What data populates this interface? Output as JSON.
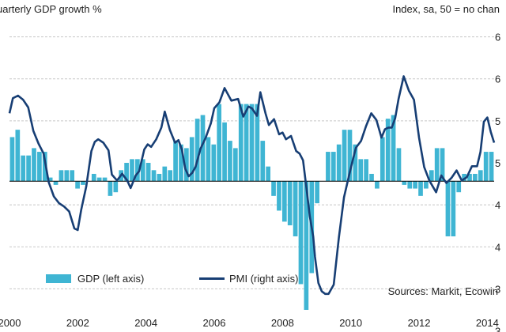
{
  "chart_data": {
    "type": "bar+line",
    "left_title": "uarterly GDP growth %",
    "right_title": "Index, sa, 50 = no chan",
    "source": "Sources: Markit, Ecowin",
    "x_ticks": [
      "2000",
      "2002",
      "2004",
      "2006",
      "2008",
      "2010",
      "2012",
      "2014"
    ],
    "x_range": [
      2000,
      2014.2
    ],
    "right_axis": {
      "ticks": [
        "6",
        "6",
        "5",
        "5",
        "4",
        "4",
        "3",
        "3"
      ],
      "range": [
        32.5,
        67.5
      ]
    },
    "left_axis": {
      "range": [
        -3.5,
        4.5
      ]
    },
    "grid": true,
    "legend": "bottom-left",
    "colors": {
      "bars": "#3fb5d3",
      "line": "#173e74",
      "grid": "#c8c8c8",
      "zero": "#000000"
    },
    "series": [
      {
        "name": "GDP (left axis)",
        "kind": "bar",
        "axis": "left",
        "values": [
          1.2,
          1.4,
          0.7,
          0.7,
          0.9,
          0.8,
          0.8,
          0.1,
          -0.1,
          0.3,
          0.3,
          0.3,
          -0.2,
          -0.1,
          0.0,
          0.2,
          0.1,
          0.1,
          -0.4,
          -0.3,
          0.3,
          0.5,
          0.6,
          0.6,
          0.6,
          0.5,
          0.3,
          0.2,
          0.4,
          0.3,
          1.1,
          1.0,
          0.9,
          1.2,
          1.7,
          1.8,
          1.2,
          1.0,
          2.1,
          1.6,
          1.1,
          0.9,
          2.1,
          2.1,
          2.1,
          2.1,
          1.1,
          0.4,
          -0.4,
          -0.8,
          -1.1,
          -1.2,
          -1.5,
          -2.8,
          -3.5,
          -2.5,
          -0.6,
          0.0,
          0.8,
          0.8,
          1.0,
          1.4,
          1.4,
          1.0,
          0.6,
          0.6,
          0.2,
          -0.2,
          1.2,
          1.7,
          1.8,
          0.9,
          -0.1,
          -0.2,
          -0.2,
          -0.4,
          -0.2,
          0.3,
          0.9,
          0.9,
          -1.5,
          -1.5,
          -0.3,
          0.2,
          0.2,
          0.2,
          0.3,
          0.8,
          0.8
        ]
      },
      {
        "name": "PMI (right axis)",
        "kind": "line",
        "axis": "right",
        "x": [
          2000.0,
          2000.1,
          2000.25,
          2000.4,
          2000.55,
          2000.7,
          2000.85,
          2001.0,
          2001.15,
          2001.3,
          2001.45,
          2001.6,
          2001.75,
          2001.9,
          2002.0,
          2002.1,
          2002.25,
          2002.4,
          2002.5,
          2002.6,
          2002.75,
          2002.9,
          2003.0,
          2003.15,
          2003.3,
          2003.45,
          2003.55,
          2003.7,
          2003.8,
          2003.95,
          2004.05,
          2004.15,
          2004.3,
          2004.45,
          2004.55,
          2004.7,
          2004.85,
          2004.95,
          2005.05,
          2005.15,
          2005.25,
          2005.35,
          2005.45,
          2005.6,
          2005.75,
          2005.9,
          2006.0,
          2006.15,
          2006.3,
          2006.5,
          2006.7,
          2006.85,
          2007.0,
          2007.1,
          2007.25,
          2007.35,
          2007.5,
          2007.6,
          2007.75,
          2007.9,
          2008.0,
          2008.1,
          2008.25,
          2008.4,
          2008.5,
          2008.6,
          2008.7,
          2008.8,
          2008.9,
          2008.95,
          2009.05,
          2009.15,
          2009.25,
          2009.35,
          2009.5,
          2009.65,
          2009.8,
          2009.95,
          2010.05,
          2010.15,
          2010.3,
          2010.45,
          2010.6,
          2010.75,
          2010.9,
          2011.0,
          2011.1,
          2011.2,
          2011.3,
          2011.4,
          2011.55,
          2011.7,
          2011.85,
          2012.0,
          2012.15,
          2012.3,
          2012.5,
          2012.65,
          2012.8,
          2012.95,
          2013.1,
          2013.25,
          2013.4,
          2013.55,
          2013.7,
          2013.8,
          2013.9,
          2014.0,
          2014.1,
          2014.2
        ],
        "values": [
          55.9,
          57.7,
          58.0,
          57.5,
          56.6,
          53.8,
          52.3,
          51.1,
          47.7,
          46.0,
          45.2,
          44.8,
          44.2,
          42.2,
          42.0,
          44.4,
          47.2,
          51.4,
          52.5,
          52.8,
          52.4,
          51.5,
          48.6,
          47.9,
          48.7,
          47.9,
          47.0,
          48.5,
          49.0,
          51.6,
          52.2,
          51.9,
          52.8,
          54.2,
          56.1,
          53.9,
          52.4,
          52.7,
          51.6,
          49.3,
          48.4,
          48.8,
          49.5,
          51.7,
          53.0,
          54.7,
          56.5,
          57.2,
          58.9,
          57.4,
          57.6,
          55.5,
          56.7,
          56.5,
          55.6,
          58.4,
          55.9,
          54.5,
          55.2,
          53.4,
          53.6,
          52.8,
          53.2,
          51.4,
          51.1,
          50.3,
          47.0,
          43.6,
          41.2,
          38.8,
          35.7,
          34.7,
          34.4,
          34.4,
          35.5,
          41.1,
          45.9,
          48.5,
          50.2,
          51.8,
          52.6,
          54.4,
          55.9,
          55.1,
          53.0,
          54.0,
          54.2,
          54.2,
          55.3,
          57.6,
          60.3,
          58.6,
          57.5,
          53.0,
          49.5,
          47.9,
          46.5,
          48.5,
          47.6,
          48.2,
          49.1,
          47.9,
          48.3,
          49.6,
          49.6,
          51.3,
          54.9,
          55.4,
          53.7,
          52.4
        ]
      }
    ]
  }
}
